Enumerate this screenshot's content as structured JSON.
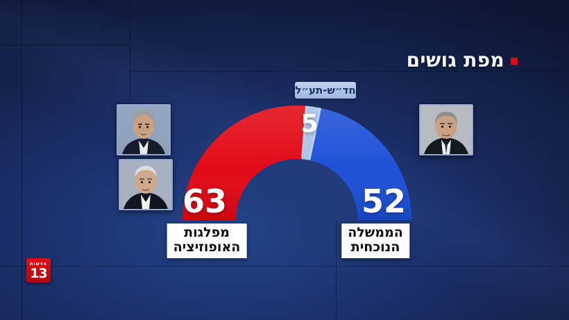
{
  "header": {
    "title": "מפת גושים",
    "bullet_color": "#e30613"
  },
  "chart_data": {
    "type": "pie",
    "variant": "semicircle-donut",
    "title": "מפת גושים",
    "total_seats": 120,
    "direction": "drawn left (red) to right (blue) over the top",
    "legend_position": "none",
    "segments": [
      {
        "label": "מפלגות האופוזיציה",
        "value": 63,
        "color": "#e10613"
      },
      {
        "label": "חד״ש-תע״ל",
        "value": 5,
        "color": "#a9c2e8"
      },
      {
        "label": "הממשלה הנוכחית",
        "value": 52,
        "color": "#1a4ed6"
      }
    ]
  },
  "callouts": {
    "left": {
      "line1": "מפלגות",
      "line2": "האופוזיציה"
    },
    "right": {
      "line1": "הממשלה",
      "line2": "הנוכחית"
    }
  },
  "photos": [
    {
      "id": "yair-lapid",
      "position": "left-top"
    },
    {
      "id": "benny-gantz",
      "position": "left-bottom"
    },
    {
      "id": "benjamin-netanyahu",
      "position": "right"
    }
  ],
  "logo": {
    "word": "חדשות",
    "number": "13",
    "color": "#cf0a12"
  },
  "colors": {
    "background_center": "#1b306b",
    "background_corner": "#0c142f",
    "callout_bg": "#ffffff",
    "badge_bg": "#a9bfe7"
  }
}
